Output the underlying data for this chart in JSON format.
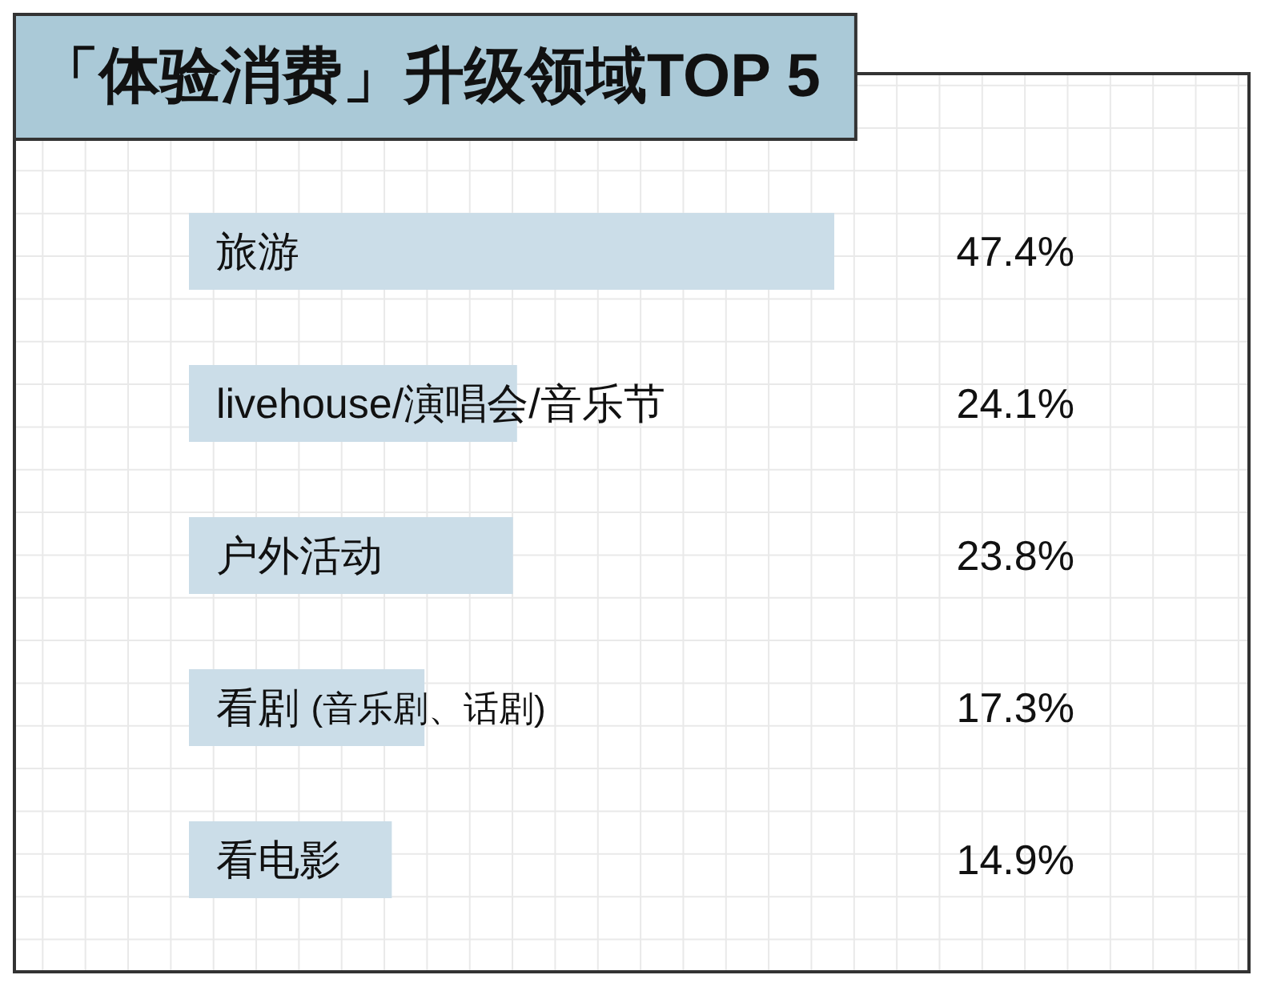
{
  "chart_data": {
    "type": "bar",
    "orientation": "horizontal",
    "title": "「体验消费」升级领域TOP 5",
    "categories": [
      "旅游",
      "livehouse/演唱会/音乐节",
      "户外活动",
      "看剧 (音乐剧、话剧)",
      "看电影"
    ],
    "values": [
      47.4,
      24.1,
      23.8,
      17.3,
      14.9
    ],
    "value_labels": [
      "47.4%",
      "24.1%",
      "23.8%",
      "17.3%",
      "14.9%"
    ],
    "color": "#cbdde8",
    "grid": true
  }
}
